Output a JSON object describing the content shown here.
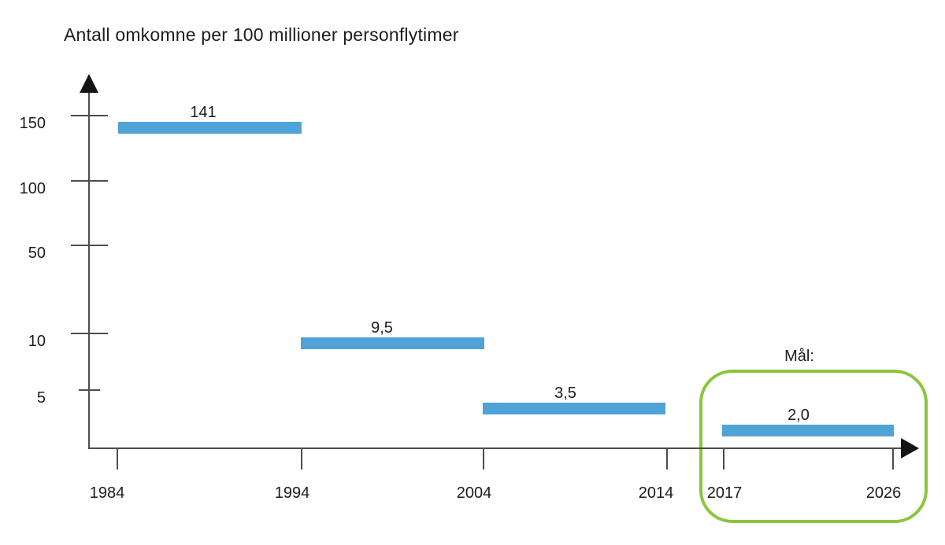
{
  "chart": {
    "title": "Antall omkomne per 100 millioner personflytimer",
    "goal_label": "Mål:"
  },
  "chart_data": {
    "type": "bar",
    "subtype": "horizontal-interval-bars",
    "title": "Antall omkomne per 100 millioner personflytimer",
    "xlabel": "",
    "ylabel": "Antall omkomne per 100 millioner personflytimer",
    "x_ticks": [
      1984,
      1994,
      2004,
      2014,
      2017,
      2026
    ],
    "y_ticks": [
      150,
      100,
      50,
      10,
      5
    ],
    "ylim": [
      0,
      160
    ],
    "y_scale": "non-linear compressed",
    "grid": false,
    "legend": false,
    "bars": [
      {
        "label": "141",
        "value": 141,
        "period_start": 1984,
        "period_end": 1994
      },
      {
        "label": "9,5",
        "value": 9.5,
        "period_start": 1994,
        "period_end": 2004
      },
      {
        "label": "3,5",
        "value": 3.5,
        "period_start": 2004,
        "period_end": 2014
      },
      {
        "label": "2,0",
        "value": 2.0,
        "period_start": 2017,
        "period_end": 2026,
        "is_goal": true
      }
    ],
    "annotation": {
      "label": "Mål:",
      "period_start": 2017,
      "period_end": 2026
    },
    "colors": {
      "bar": "#4fa3d7",
      "goal_box": "#8bc53f",
      "axis": "#4d4d4d",
      "arrow": "#141414",
      "text": "#1c1c1c",
      "background": "#ffffff"
    }
  }
}
